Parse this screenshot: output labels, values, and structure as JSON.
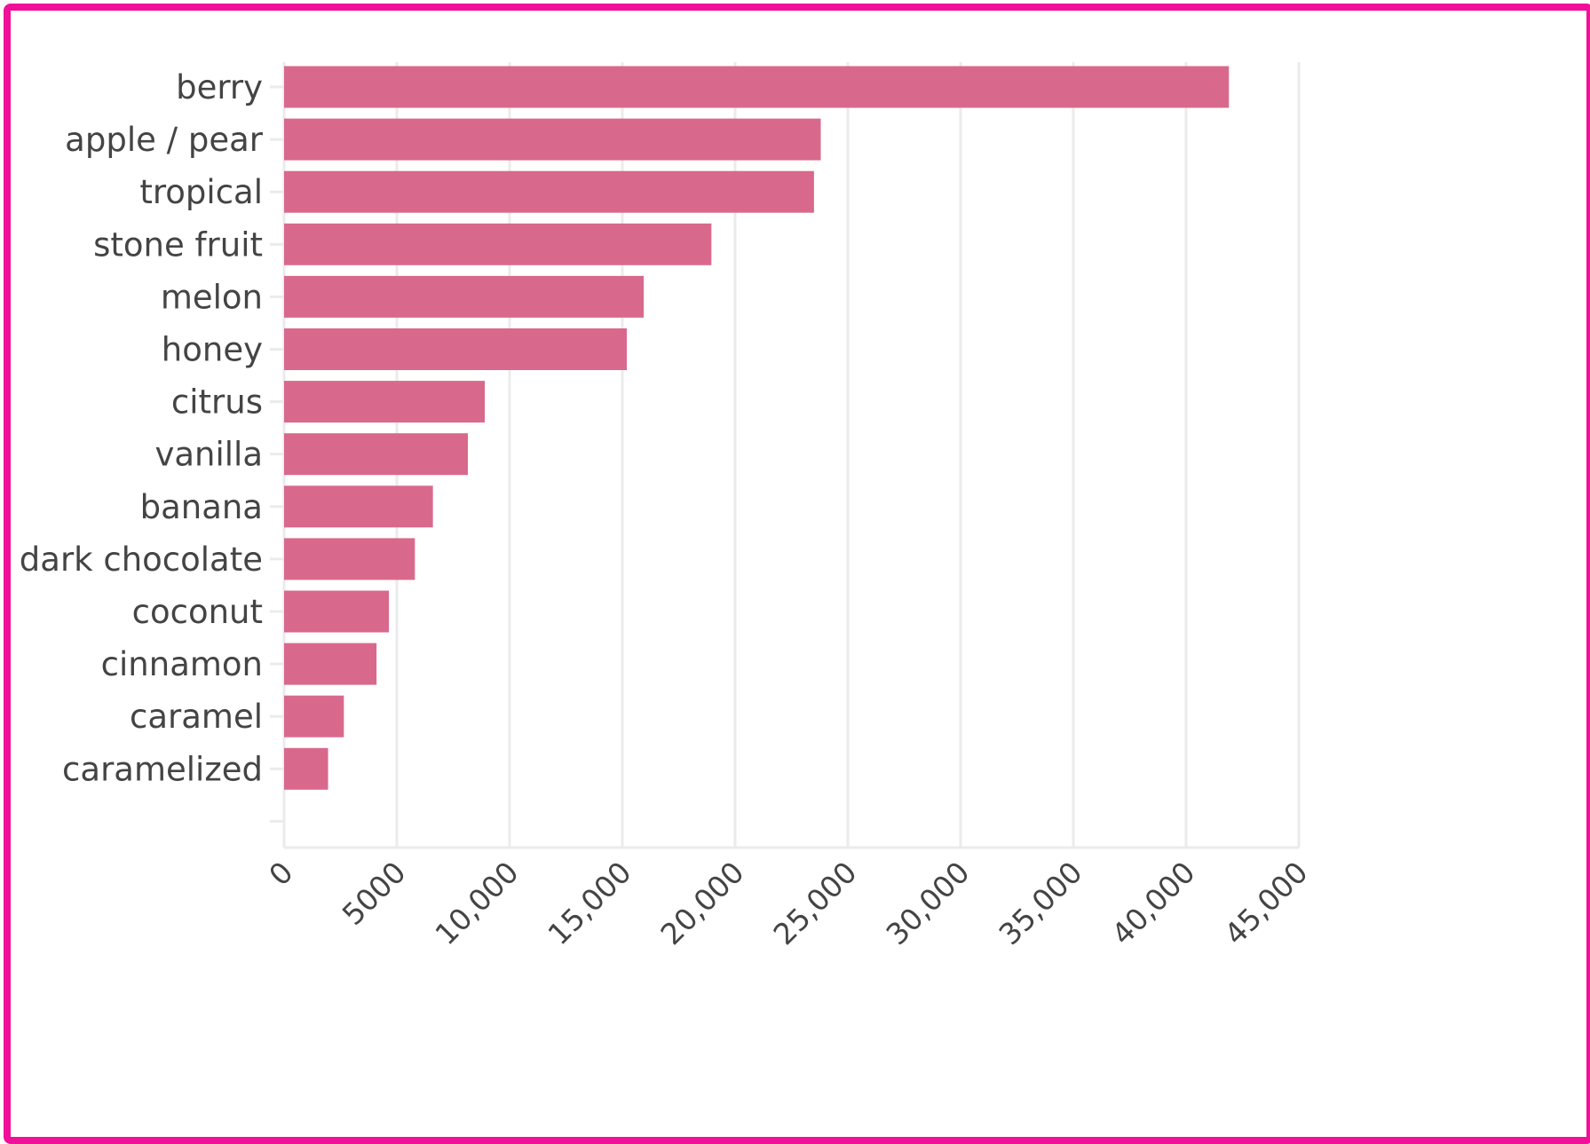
{
  "chart_data": {
    "type": "bar",
    "orientation": "horizontal",
    "categories": [
      "berry",
      "apple / pear",
      "tropical",
      "stone fruit",
      "melon",
      "honey",
      "citrus",
      "vanilla",
      "banana",
      "dark chocolate",
      "coconut",
      "cinnamon",
      "caramel",
      "caramelized"
    ],
    "values": [
      41900,
      23800,
      23500,
      18950,
      15950,
      15200,
      8900,
      8150,
      6600,
      5800,
      4650,
      4100,
      2650,
      1950
    ],
    "xlim": [
      0,
      45000
    ],
    "xticks": [
      0,
      5000,
      10000,
      15000,
      20000,
      25000,
      30000,
      35000,
      40000,
      45000
    ],
    "xtick_labels": [
      "0",
      "5000",
      "10,000",
      "15,000",
      "20,000",
      "25,000",
      "30,000",
      "35,000",
      "40,000",
      "45,000"
    ],
    "grid": true,
    "bar_color": "#d9698c",
    "grid_color": "#ebebeb",
    "text_color": "#444444"
  },
  "frame_color": "#f0109a"
}
